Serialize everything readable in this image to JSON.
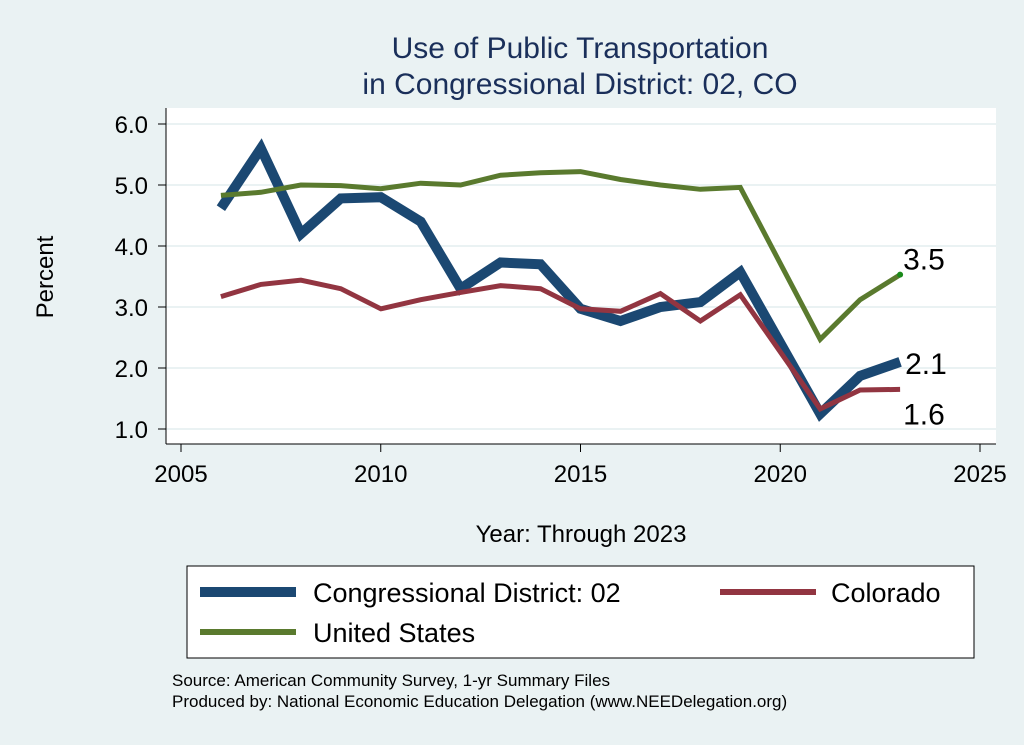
{
  "chart_data": {
    "type": "line",
    "title": [
      "Use of Public Transportation",
      "in Congressional District: 02, CO"
    ],
    "xlabel": "Year: Through 2023",
    "ylabel": "Percent",
    "xlim": [
      2005,
      2025
    ],
    "ylim": [
      1.0,
      6.0
    ],
    "xticks": [
      2005,
      2010,
      2015,
      2020,
      2025
    ],
    "yticks": [
      "1.0",
      "2.0",
      "3.0",
      "4.0",
      "5.0",
      "6.0"
    ],
    "grid": true,
    "legend_position": "bottom",
    "series": [
      {
        "name": "Congressional District: 02",
        "color": "#1b4872",
        "x": [
          2006,
          2007,
          2008,
          2009,
          2010,
          2011,
          2012,
          2013,
          2014,
          2015,
          2016,
          2017,
          2018,
          2019,
          2021,
          2022,
          2023
        ],
        "values": [
          4.62,
          5.6,
          4.2,
          4.78,
          4.8,
          4.4,
          3.3,
          3.73,
          3.7,
          2.97,
          2.77,
          3.0,
          3.08,
          3.57,
          1.25,
          1.87,
          2.1
        ],
        "end_label": "2.1"
      },
      {
        "name": "Colorado",
        "color": "#923541",
        "x": [
          2006,
          2007,
          2008,
          2009,
          2010,
          2011,
          2012,
          2013,
          2014,
          2015,
          2016,
          2017,
          2018,
          2019,
          2021,
          2022,
          2023
        ],
        "values": [
          3.17,
          3.37,
          3.44,
          3.3,
          2.97,
          3.12,
          3.24,
          3.35,
          3.3,
          2.97,
          2.93,
          3.22,
          2.77,
          3.2,
          1.33,
          1.64,
          1.65
        ],
        "end_label": "1.6"
      },
      {
        "name": "United States",
        "color": "#5a7a2e",
        "x": [
          2006,
          2007,
          2008,
          2009,
          2010,
          2011,
          2012,
          2013,
          2014,
          2015,
          2016,
          2017,
          2018,
          2019,
          2021,
          2022,
          2023
        ],
        "values": [
          4.83,
          4.88,
          5.0,
          4.99,
          4.94,
          5.03,
          5.0,
          5.16,
          5.2,
          5.22,
          5.09,
          5.0,
          4.93,
          4.96,
          2.47,
          3.12,
          3.53
        ],
        "end_label": "3.5"
      }
    ],
    "notes": [
      "Source: American Community Survey, 1-yr Summary Files",
      "Produced by: National Economic Education Delegation (www.NEEDelegation.org)"
    ]
  }
}
